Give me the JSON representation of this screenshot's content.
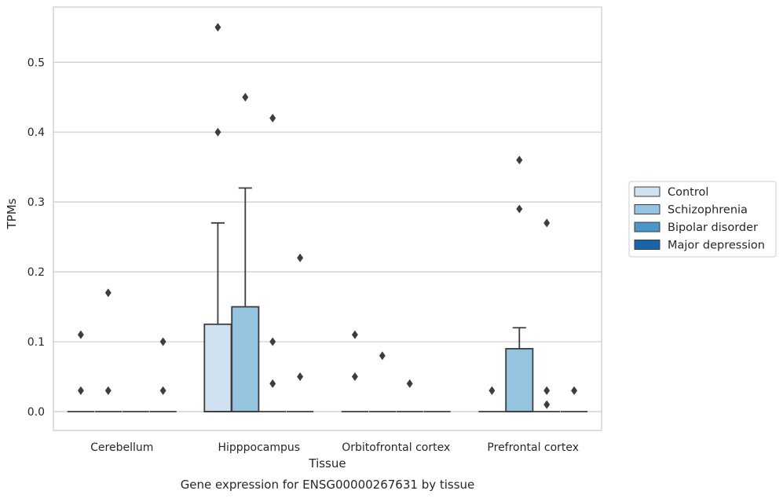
{
  "chart_data": {
    "type": "box",
    "title": "",
    "caption": "Gene expression for ENSG00000267631 by tissue",
    "xlabel": "Tissue",
    "ylabel": "TPMs",
    "ylim": [
      -0.027,
      0.579
    ],
    "yticks": [
      0.0,
      0.1,
      0.2,
      0.3,
      0.4,
      0.5
    ],
    "ytick_labels": [
      "0.0",
      "0.1",
      "0.2",
      "0.3",
      "0.4",
      "0.5"
    ],
    "grid": "horizontal",
    "legend_position": "right",
    "categories": [
      "Cerebellum",
      "Hipppocampus",
      "Orbitofrontal cortex",
      "Prefrontal cortex"
    ],
    "series": [
      {
        "name": "Control",
        "color": "#d0e1f2",
        "boxes": [
          {
            "q1": 0,
            "median": 0,
            "q3": 0,
            "whisker_low": 0,
            "whisker_high": 0,
            "outliers": [
              0.11,
              0.03
            ]
          },
          {
            "q1": 0,
            "median": 0,
            "q3": 0.125,
            "whisker_low": 0,
            "whisker_high": 0.27,
            "outliers": [
              0.55,
              0.4
            ]
          },
          {
            "q1": 0,
            "median": 0,
            "q3": 0,
            "whisker_low": 0,
            "whisker_high": 0,
            "outliers": [
              0.11,
              0.05
            ]
          },
          {
            "q1": 0,
            "median": 0,
            "q3": 0,
            "whisker_low": 0,
            "whisker_high": 0,
            "outliers": [
              0.03
            ]
          }
        ]
      },
      {
        "name": "Schizophrenia",
        "color": "#94c4df",
        "boxes": [
          {
            "q1": 0,
            "median": 0,
            "q3": 0,
            "whisker_low": 0,
            "whisker_high": 0,
            "outliers": [
              0.17,
              0.03
            ]
          },
          {
            "q1": 0,
            "median": 0,
            "q3": 0.15,
            "whisker_low": 0,
            "whisker_high": 0.32,
            "outliers": [
              0.45
            ]
          },
          {
            "q1": 0,
            "median": 0,
            "q3": 0,
            "whisker_low": 0,
            "whisker_high": 0,
            "outliers": [
              0.08
            ]
          },
          {
            "q1": 0,
            "median": 0,
            "q3": 0.09,
            "whisker_low": 0,
            "whisker_high": 0.12,
            "outliers": [
              0.36,
              0.29
            ]
          }
        ]
      },
      {
        "name": "Bipolar disorder",
        "color": "#4a98c9",
        "boxes": [
          {
            "q1": 0,
            "median": 0,
            "q3": 0,
            "whisker_low": 0,
            "whisker_high": 0,
            "outliers": []
          },
          {
            "q1": 0,
            "median": 0,
            "q3": 0,
            "whisker_low": 0,
            "whisker_high": 0,
            "outliers": [
              0.42,
              0.1,
              0.04
            ]
          },
          {
            "q1": 0,
            "median": 0,
            "q3": 0,
            "whisker_low": 0,
            "whisker_high": 0,
            "outliers": [
              0.04
            ]
          },
          {
            "q1": 0,
            "median": 0,
            "q3": 0,
            "whisker_low": 0,
            "whisker_high": 0,
            "outliers": [
              0.27,
              0.03,
              0.01
            ]
          }
        ]
      },
      {
        "name": "Major depression",
        "color": "#1764ab",
        "boxes": [
          {
            "q1": 0,
            "median": 0,
            "q3": 0,
            "whisker_low": 0,
            "whisker_high": 0,
            "outliers": [
              0.1,
              0.03
            ]
          },
          {
            "q1": 0,
            "median": 0,
            "q3": 0,
            "whisker_low": 0,
            "whisker_high": 0,
            "outliers": [
              0.22,
              0.05
            ]
          },
          {
            "q1": 0,
            "median": 0,
            "q3": 0,
            "whisker_low": 0,
            "whisker_high": 0,
            "outliers": []
          },
          {
            "q1": 0,
            "median": 0,
            "q3": 0,
            "whisker_low": 0,
            "whisker_high": 0,
            "outliers": [
              0.03
            ]
          }
        ]
      }
    ]
  }
}
